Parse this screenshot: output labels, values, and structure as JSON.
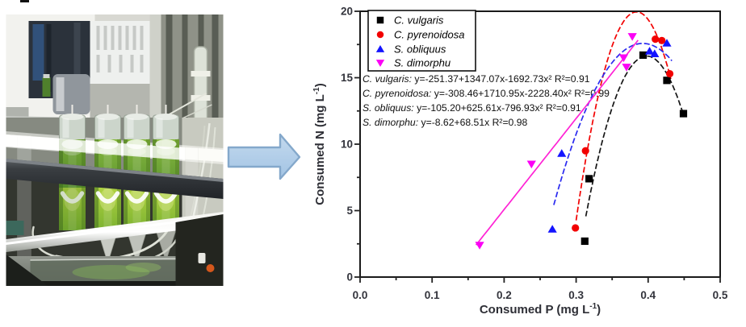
{
  "figure": {
    "photo": {
      "description": "Laboratory photobioreactor: four glass columns of green microalgae culture in an acrylic rack with fluorescent lights"
    },
    "arrow": {
      "direction": "right",
      "fill_top": "#c3d9ee",
      "fill_bottom": "#a3c4e4",
      "border": "#84a8cb"
    }
  },
  "chart_data": {
    "type": "scatter",
    "title": "",
    "xlabel": {
      "pre": "Consumed P (mg L",
      "sup": "-1",
      "post": ")"
    },
    "ylabel": {
      "pre": "Consumed N (mg L",
      "sup": "-1",
      "post": ")"
    },
    "xlim": [
      0.0,
      0.5
    ],
    "ylim": [
      0,
      20
    ],
    "x_ticks": {
      "values": [
        0.0,
        0.1,
        0.2,
        0.3,
        0.4,
        0.5
      ],
      "labels": [
        "0.0",
        "0.1",
        "0.2",
        "0.3",
        "0.4",
        "0.5"
      ]
    },
    "y_ticks": {
      "values": [
        0,
        5,
        10,
        15,
        20
      ],
      "labels": [
        "0",
        "5",
        "10",
        "15",
        "20"
      ]
    },
    "x_minor": [
      0.05,
      0.15,
      0.25,
      0.35,
      0.45
    ],
    "y_minor": [
      2.5,
      7.5,
      12.5,
      17.5
    ],
    "grid": false,
    "legend_position": "top-left-inside",
    "series": [
      {
        "name": "C. vulgaris",
        "marker": "square",
        "color": "#000000",
        "line_color": "#161616",
        "line_dash": true,
        "points": [
          [
            0.312,
            2.7
          ],
          [
            0.318,
            7.4
          ],
          [
            0.393,
            16.7
          ],
          [
            0.426,
            14.8
          ],
          [
            0.449,
            12.3
          ]
        ],
        "fit": {
          "coeffs": [
            -251.37,
            1347.07,
            -1692.73
          ],
          "x_range": [
            0.3135,
            0.45
          ],
          "equation": "y=-251.37+1347.07x-1692.73x² R²=0.91",
          "r2": "0.91"
        }
      },
      {
        "name": "C. pyrenoidosa",
        "marker": "circle",
        "color": "#f20000",
        "line_color": "#f20000",
        "line_dash": true,
        "points": [
          [
            0.299,
            3.7
          ],
          [
            0.313,
            9.5
          ],
          [
            0.41,
            17.9
          ],
          [
            0.419,
            17.8
          ],
          [
            0.43,
            15.3
          ]
        ],
        "fit": {
          "coeffs": [
            -308.46,
            1710.95,
            -2228.4
          ],
          "x_range": [
            0.3,
            0.4315
          ],
          "equation": "y=-308.46+1710.95x-2228.40x² R²=0.99",
          "r2": "0.99"
        }
      },
      {
        "name": "S. obliquus",
        "marker": "triangle-up",
        "color": "#1414ff",
        "line_color": "#2a2af0",
        "line_dash": true,
        "points": [
          [
            0.267,
            3.6
          ],
          [
            0.28,
            9.3
          ],
          [
            0.402,
            17.0
          ],
          [
            0.409,
            16.8
          ],
          [
            0.426,
            17.6
          ]
        ],
        "fit": {
          "coeffs": [
            -105.2,
            625.61,
            -796.93
          ],
          "x_range": [
            0.269,
            0.433
          ],
          "equation": "y=-105.20+625.61x-796.93x² R²=0.91",
          "r2": "0.91"
        }
      },
      {
        "name": "S. dimorphu",
        "marker": "triangle-down",
        "color": "#fb00f5",
        "line_color": "#ff22d5",
        "line_dash": false,
        "points": [
          [
            0.166,
            2.4
          ],
          [
            0.238,
            8.5
          ],
          [
            0.366,
            16.5
          ],
          [
            0.37,
            15.8
          ],
          [
            0.378,
            18.1
          ]
        ],
        "fit": {
          "coeffs": [
            -8.62,
            68.51,
            0
          ],
          "x_range": [
            0.161,
            0.386
          ],
          "equation": "y=-8.62+68.51x R²=0.98",
          "r2": "0.98"
        }
      }
    ]
  }
}
